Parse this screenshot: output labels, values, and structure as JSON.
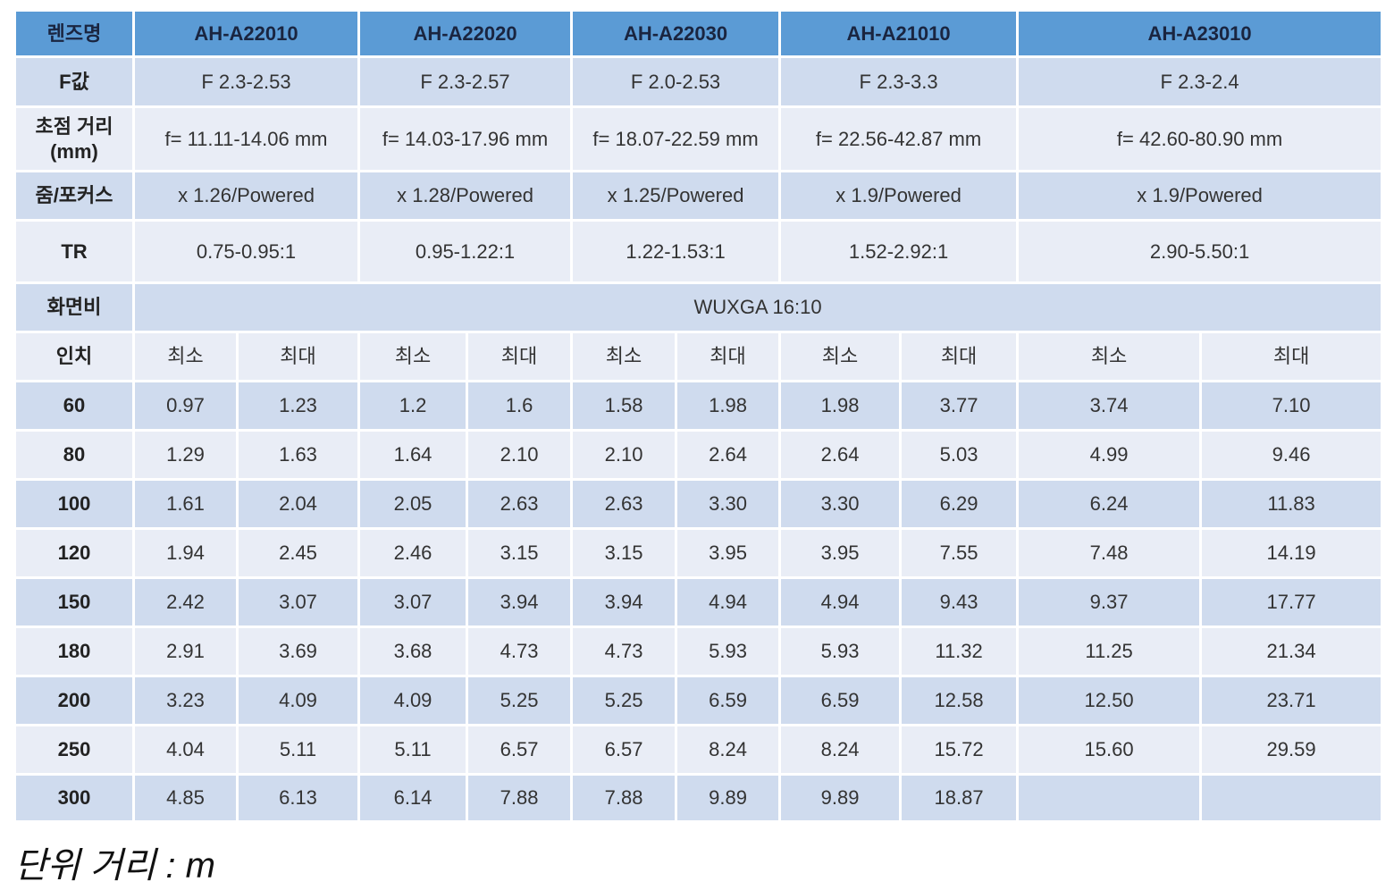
{
  "table": {
    "header": [
      "렌즈명",
      "AH-A22010",
      "AH-A22020",
      "AH-A22030",
      "AH-A21010",
      "AH-A23010"
    ],
    "specs": [
      {
        "label": "F값",
        "values": [
          "F 2.3-2.53",
          "F 2.3-2.57",
          "F 2.0-2.53",
          "F 2.3-3.3",
          "F 2.3-2.4"
        ]
      },
      {
        "label": "초점 거리\n(mm)",
        "values": [
          "f=  11.11-14.06 mm",
          "f=  14.03-17.96 mm",
          "f=  18.07-22.59 mm",
          "f=  22.56-42.87 mm",
          "f=  42.60-80.90 mm"
        ]
      },
      {
        "label": "줌/포커스",
        "values": [
          "x 1.26/Powered",
          "x 1.28/Powered",
          "x 1.25/Powered",
          "x 1.9/Powered",
          "x 1.9/Powered"
        ]
      },
      {
        "label": "TR",
        "values": [
          "0.75-0.95:1",
          "0.95-1.22:1",
          "1.22-1.53:1",
          "1.52-2.92:1",
          "2.90-5.50:1"
        ]
      }
    ],
    "aspect": {
      "label": "화면비",
      "value": "WUXGA 16:10"
    },
    "size_header": {
      "label": "인치",
      "subheaders": [
        "최소",
        "최대",
        "최소",
        "최대",
        "최소",
        "최대",
        "최소",
        "최대",
        "최소",
        "최대"
      ]
    },
    "rows": [
      [
        "60",
        "0.97",
        "1.23",
        "1.2",
        "1.6",
        "1.58",
        "1.98",
        "1.98",
        "3.77",
        "3.74",
        "7.10"
      ],
      [
        "80",
        "1.29",
        "1.63",
        "1.64",
        "2.10",
        "2.10",
        "2.64",
        "2.64",
        "5.03",
        "4.99",
        "9.46"
      ],
      [
        "100",
        "1.61",
        "2.04",
        "2.05",
        "2.63",
        "2.63",
        "3.30",
        "3.30",
        "6.29",
        "6.24",
        "11.83"
      ],
      [
        "120",
        "1.94",
        "2.45",
        "2.46",
        "3.15",
        "3.15",
        "3.95",
        "3.95",
        "7.55",
        "7.48",
        "14.19"
      ],
      [
        "150",
        "2.42",
        "3.07",
        "3.07",
        "3.94",
        "3.94",
        "4.94",
        "4.94",
        "9.43",
        "9.37",
        "17.77"
      ],
      [
        "180",
        "2.91",
        "3.69",
        "3.68",
        "4.73",
        "4.73",
        "5.93",
        "5.93",
        "11.32",
        "11.25",
        "21.34"
      ],
      [
        "200",
        "3.23",
        "4.09",
        "4.09",
        "5.25",
        "5.25",
        "6.59",
        "6.59",
        "12.58",
        "12.50",
        "23.71"
      ],
      [
        "250",
        "4.04",
        "5.11",
        "5.11",
        "6.57",
        "6.57",
        "8.24",
        "8.24",
        "15.72",
        "15.60",
        "29.59"
      ],
      [
        "300",
        "4.85",
        "6.13",
        "6.14",
        "7.88",
        "7.88",
        "9.89",
        "9.89",
        "18.87"
      ]
    ]
  },
  "footnote": "단위 거리 : m"
}
